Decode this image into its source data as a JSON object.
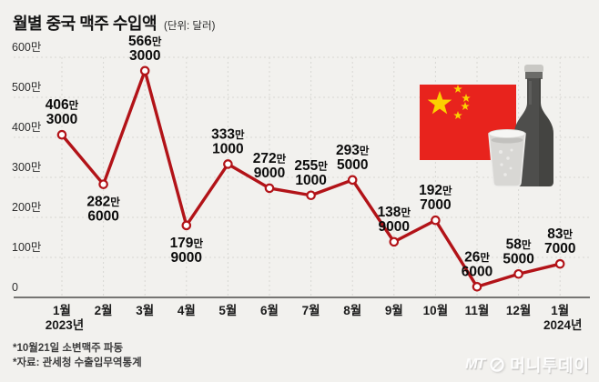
{
  "title": "월별 중국 맥주 수입액",
  "unit_label": "(단위: 달러)",
  "footnotes": [
    "*10월21일 소변맥주 파동",
    "*자료: 관세청 수출입무역통계"
  ],
  "logo": {
    "mt": "MT",
    "name": "머니투데이"
  },
  "colors": {
    "background": "#f2f1ee",
    "line": "#b21318",
    "marker_fill": "#ffffff",
    "grid": "#d8d7d3",
    "axis": "#4c4c4a",
    "label_text": "#0c0c0c",
    "tick_text": "#2f2f2f",
    "flag_red": "#e8231d",
    "star_yellow": "#fcd000"
  },
  "chart_data": {
    "type": "line",
    "categories": [
      "1월",
      "2월",
      "3월",
      "4월",
      "5월",
      "6월",
      "7월",
      "8월",
      "9월",
      "10월",
      "11월",
      "12월",
      "1월"
    ],
    "year_marks": [
      {
        "index": 0,
        "label": "2023년"
      },
      {
        "index": 12,
        "label": "2024년"
      }
    ],
    "values": [
      4063000,
      2826000,
      5663000,
      1799000,
      3331000,
      2729000,
      2551000,
      2935000,
      1389000,
      1927000,
      266000,
      585000,
      837000
    ],
    "point_labels": [
      {
        "line1": "406만",
        "line2": "3000",
        "side": "above"
      },
      {
        "line1": "282만",
        "line2": "6000",
        "side": "below"
      },
      {
        "line1": "566만",
        "line2": "3000",
        "side": "above"
      },
      {
        "line1": "179만",
        "line2": "9000",
        "side": "below"
      },
      {
        "line1": "333만",
        "line2": "1000",
        "side": "above"
      },
      {
        "line1": "272만",
        "line2": "9000",
        "side": "above"
      },
      {
        "line1": "255만",
        "line2": "1000",
        "side": "above"
      },
      {
        "line1": "293만",
        "line2": "5000",
        "side": "above"
      },
      {
        "line1": "138만",
        "line2": "9000",
        "side": "above"
      },
      {
        "line1": "192만",
        "line2": "7000",
        "side": "above"
      },
      {
        "line1": "26만",
        "line2": "6000",
        "side": "above"
      },
      {
        "line1": "58만",
        "line2": "5000",
        "side": "above"
      },
      {
        "line1": "83만",
        "line2": "7000",
        "side": "above"
      }
    ],
    "y_ticks": [
      {
        "value": 0,
        "label": "0"
      },
      {
        "value": 1000000,
        "label": "100만"
      },
      {
        "value": 2000000,
        "label": "200만"
      },
      {
        "value": 3000000,
        "label": "300만"
      },
      {
        "value": 4000000,
        "label": "400만"
      },
      {
        "value": 5000000,
        "label": "500만"
      },
      {
        "value": 6000000,
        "label": "600만"
      }
    ],
    "ylim": [
      0,
      6000000
    ],
    "grid": "dotted horizontal and vertical",
    "legend": "none"
  }
}
